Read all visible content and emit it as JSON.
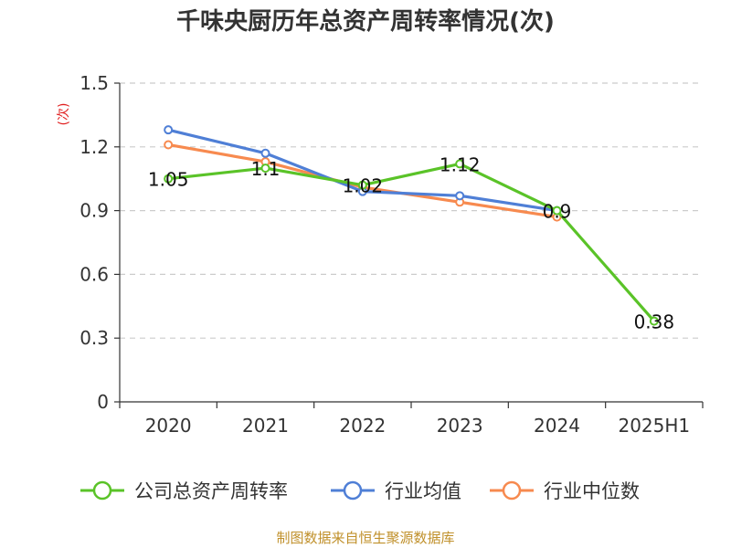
{
  "chart_data": {
    "type": "line",
    "title": "千味央厨历年总资产周转率情况(次)",
    "ylabel": "(次)",
    "categories": [
      "2020",
      "2021",
      "2022",
      "2023",
      "2024",
      "2025H1"
    ],
    "ylim": [
      0,
      1.5
    ],
    "yticks": [
      "1.5",
      "1.2",
      "0.9",
      "0.6",
      "0.3",
      "0"
    ],
    "ytick_values": [
      1.5,
      1.2,
      0.9,
      0.6,
      0.3,
      0
    ],
    "grid": "horizontal-dashed",
    "legend_position": "bottom",
    "series": [
      {
        "name": "公司总资产周转率",
        "color": "#5ac328",
        "values": [
          1.05,
          1.1,
          1.02,
          1.12,
          0.9,
          0.38
        ],
        "labels": [
          "1.05",
          "1.1",
          "1.02",
          "1.12",
          "0.9",
          "0.38"
        ]
      },
      {
        "name": "行业均值",
        "color": "#4f7fd6",
        "values": [
          1.28,
          1.17,
          0.99,
          0.97,
          0.9,
          null
        ]
      },
      {
        "name": "行业中位数",
        "color": "#f78a4f",
        "values": [
          1.21,
          1.13,
          1.01,
          0.94,
          0.87,
          null
        ]
      }
    ]
  },
  "source_text": "制图数据来自恒生聚源数据库"
}
